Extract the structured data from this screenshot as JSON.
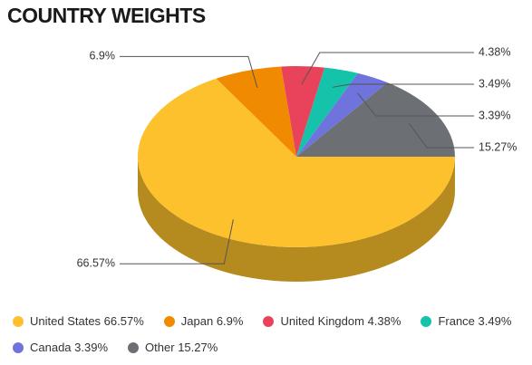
{
  "chart_data": {
    "type": "pie",
    "title": "COUNTRY WEIGHTS",
    "categories": [
      "United States",
      "Japan",
      "United Kingdom",
      "France",
      "Canada",
      "Other"
    ],
    "values": [
      66.57,
      6.9,
      4.38,
      3.49,
      3.39,
      15.27
    ],
    "value_labels": [
      "66.57%",
      "6.9%",
      "4.38%",
      "3.49%",
      "3.39%",
      "15.27%"
    ],
    "colors": [
      "#fcc12d",
      "#f08a00",
      "#e8435a",
      "#14c3a9",
      "#6e74dc",
      "#6c7075"
    ],
    "legend": "bottom"
  }
}
